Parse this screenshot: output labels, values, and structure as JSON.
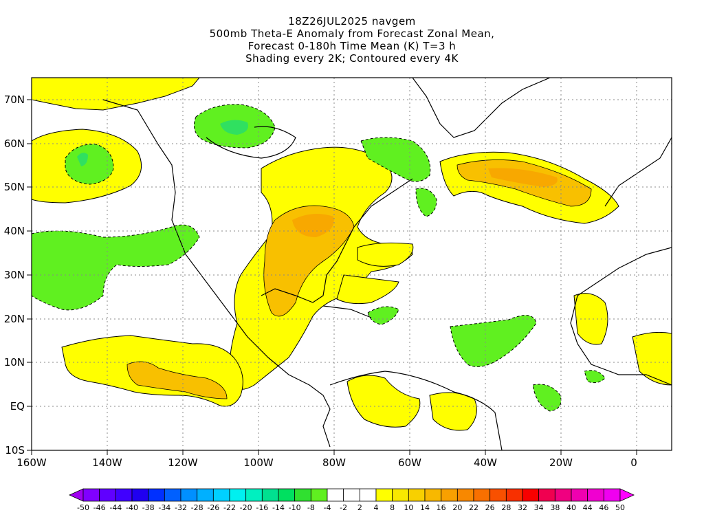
{
  "title": {
    "line1": "18Z26JUL2025 navgem",
    "line2": "500mb Theta-E Anomaly from Forecast Zonal Mean,",
    "line3": "Forecast 0-180h Time Mean (K) T=3 h",
    "line4": "Shading every 2K; Contoured every 4K"
  },
  "axes": {
    "x_ticks": [
      "160W",
      "140W",
      "120W",
      "100W",
      "80W",
      "60W",
      "40W",
      "20W",
      "0"
    ],
    "y_ticks": [
      "70N",
      "60N",
      "50N",
      "40N",
      "30N",
      "20N",
      "10N",
      "EQ",
      "10S"
    ]
  },
  "colorbar": {
    "labels": [
      "-50",
      "-46",
      "-44",
      "-40",
      "-38",
      "-34",
      "-32",
      "-28",
      "-26",
      "-22",
      "-20",
      "-16",
      "-14",
      "-10",
      "-8",
      "-4",
      "-2",
      "2",
      "4",
      "8",
      "10",
      "14",
      "16",
      "20",
      "22",
      "26",
      "28",
      "32",
      "34",
      "38",
      "40",
      "44",
      "46",
      "50"
    ],
    "colors": [
      "#a000f0",
      "#8000ff",
      "#6000ff",
      "#4000ff",
      "#2000f0",
      "#0030ff",
      "#0060ff",
      "#0090ff",
      "#00b0ff",
      "#00d0ff",
      "#00f0f0",
      "#00f0c0",
      "#00e090",
      "#00e060",
      "#30e030",
      "#60f020",
      "#ffffff",
      "#ffffff",
      "#ffffff",
      "#ffff00",
      "#f8e800",
      "#f8d000",
      "#f8b800",
      "#f8a000",
      "#f88800",
      "#f87000",
      "#f85000",
      "#f83000",
      "#f80000",
      "#f00050",
      "#f00080",
      "#f000b0",
      "#f000d0",
      "#f000f0",
      "#ff00ff"
    ]
  },
  "map_fill_colors": {
    "ocean": "#ffffff",
    "warm_2_4": "#ffff00",
    "warm_4_8": "#f8e000",
    "warm_8_10": "#f8c000",
    "warm_10_14": "#f8a800",
    "cool_2_4": "#60f020",
    "cool_4_8": "#30e060",
    "cool_8_10": "#00e090"
  }
}
